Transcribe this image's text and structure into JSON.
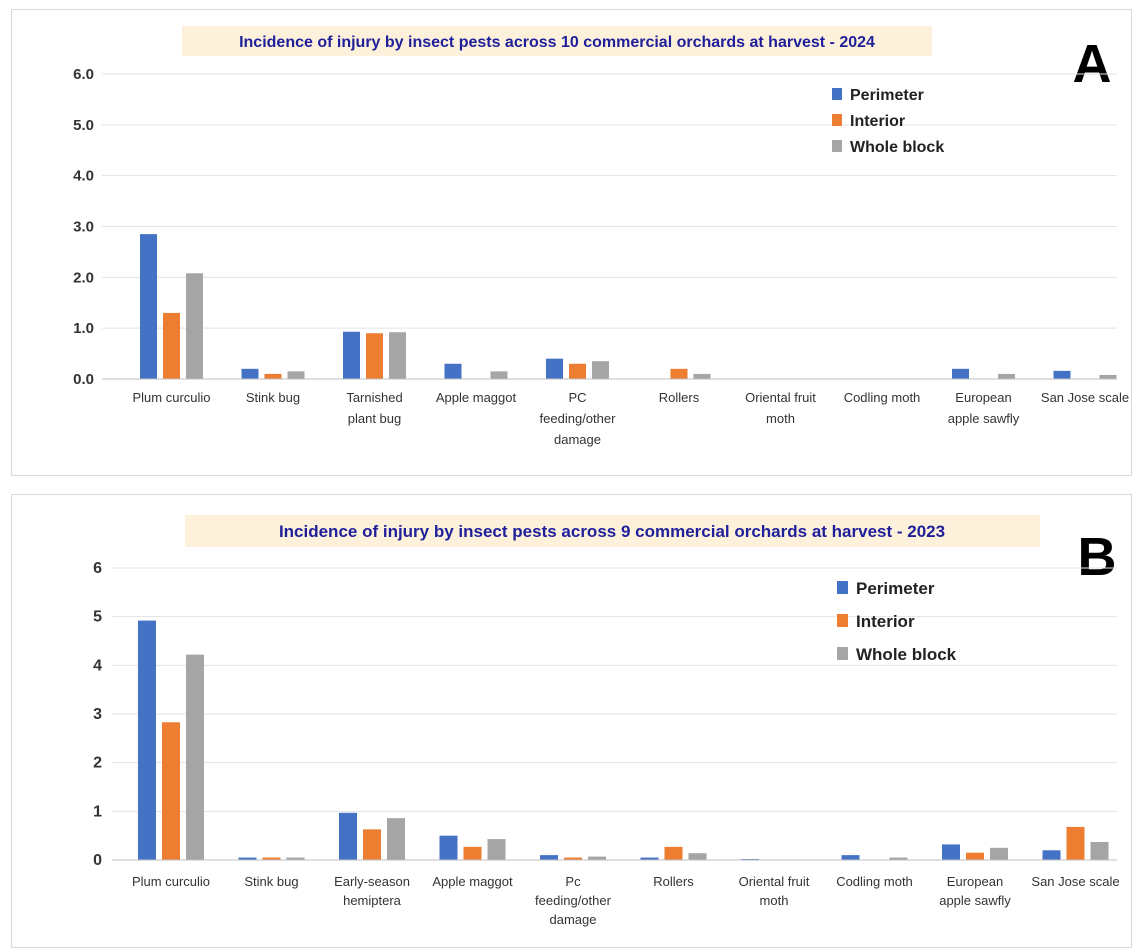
{
  "chart_data": [
    {
      "type": "bar",
      "panel_label": "A",
      "title": "Incidence of injury by insect pests across 10 commercial orchards at harvest  - 2024",
      "ylim": [
        0,
        6
      ],
      "yticks": [
        "0.0",
        "1.0",
        "2.0",
        "3.0",
        "4.0",
        "5.0",
        "6.0"
      ],
      "grid": true,
      "legend_position": "top-right",
      "categories": [
        [
          "Plum curculio"
        ],
        [
          "Stink bug"
        ],
        [
          "Tarnished",
          "plant bug"
        ],
        [
          "Apple maggot"
        ],
        [
          "PC",
          "feeding/other",
          "damage"
        ],
        [
          "Rollers"
        ],
        [
          "Oriental fruit",
          "moth"
        ],
        [
          "Codling moth"
        ],
        [
          "European",
          "apple sawfly"
        ],
        [
          "San Jose scale"
        ]
      ],
      "series": [
        {
          "name": "Perimeter",
          "color": "#4472c4",
          "values": [
            2.85,
            0.2,
            0.93,
            0.3,
            0.4,
            0,
            0,
            0,
            0.2,
            0.16
          ]
        },
        {
          "name": "Interior",
          "color": "#ed7d31",
          "values": [
            1.3,
            0.1,
            0.9,
            0,
            0.3,
            0.2,
            0,
            0,
            0,
            0
          ]
        },
        {
          "name": "Whole block",
          "color": "#a5a5a5",
          "values": [
            2.08,
            0.15,
            0.92,
            0.15,
            0.35,
            0.1,
            0,
            0,
            0.1,
            0.08
          ]
        }
      ]
    },
    {
      "type": "bar",
      "panel_label": "B",
      "title": "Incidence of injury by insect pests across 9 commercial orchards at harvest  - 2023",
      "ylim": [
        0,
        6
      ],
      "yticks": [
        "0",
        "1",
        "2",
        "3",
        "4",
        "5",
        "6"
      ],
      "grid": true,
      "legend_position": "top-right",
      "categories": [
        [
          "Plum curculio"
        ],
        [
          "Stink bug"
        ],
        [
          "Early-season",
          "hemiptera"
        ],
        [
          "Apple maggot"
        ],
        [
          "Pc",
          "feeding/other",
          "damage"
        ],
        [
          "Rollers"
        ],
        [
          "Oriental fruit",
          "moth"
        ],
        [
          "Codling moth"
        ],
        [
          "European",
          "apple sawfly"
        ],
        [
          "San Jose scale"
        ]
      ],
      "series": [
        {
          "name": "Perimeter",
          "color": "#4472c4",
          "values": [
            4.92,
            0.05,
            0.97,
            0.5,
            0.1,
            0.05,
            0.02,
            0.1,
            0.32,
            0.2
          ]
        },
        {
          "name": "Interior",
          "color": "#ed7d31",
          "values": [
            2.83,
            0.05,
            0.63,
            0.27,
            0.05,
            0.27,
            0,
            0,
            0.15,
            0.68
          ]
        },
        {
          "name": "Whole block",
          "color": "#a5a5a5",
          "values": [
            4.22,
            0.05,
            0.86,
            0.43,
            0.07,
            0.14,
            0,
            0.05,
            0.25,
            0.37
          ]
        }
      ]
    }
  ]
}
